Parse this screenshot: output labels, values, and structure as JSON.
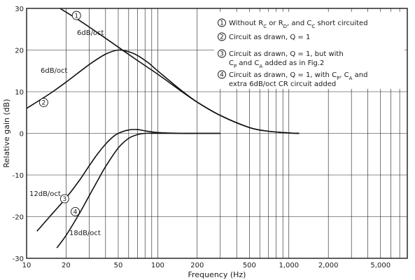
{
  "chart_data": {
    "type": "line",
    "xlabel": "Frequency (Hz)",
    "ylabel": "Relative gain (dB)",
    "xscale": "log",
    "xlim": [
      10,
      8000
    ],
    "ylim": [
      -30,
      30
    ],
    "x_ticks": [
      {
        "value": 10,
        "label": "10"
      },
      {
        "value": 20,
        "label": "20"
      },
      {
        "value": 50,
        "label": "50"
      },
      {
        "value": 100,
        "label": "100"
      },
      {
        "value": 200,
        "label": "200"
      },
      {
        "value": 500,
        "label": "500"
      },
      {
        "value": 1000,
        "label": "1,000"
      },
      {
        "value": 2000,
        "label": "2,000"
      },
      {
        "value": 5000,
        "label": "5,000"
      }
    ],
    "y_ticks": [
      {
        "value": 30,
        "label": "30"
      },
      {
        "value": 20,
        "label": "20"
      },
      {
        "value": 10,
        "label": "10"
      },
      {
        "value": 0,
        "label": "0"
      },
      {
        "value": -10,
        "label": "-10"
      },
      {
        "value": -20,
        "label": "-20"
      },
      {
        "value": -30,
        "label": "-30"
      }
    ],
    "grid": true,
    "legend_position": "top-right",
    "legend": [
      "Without R_C or R_D, and C_C short circuited",
      "Circuit as drawn, Q = 1",
      "Circuit as drawn, Q = 1, but with C_P and C_A added as in Fig.2",
      "Circuit as drawn, Q = 1, with C_P, C_A and extra 6dB/oct CR circuit added"
    ],
    "series": [
      {
        "id": "1",
        "x": [
          18,
          25,
          35,
          50,
          70,
          100,
          150,
          200,
          300,
          500,
          700,
          1000,
          1200
        ],
        "y": [
          30,
          27.2,
          24.1,
          20.7,
          17.5,
          14.2,
          10.2,
          7.5,
          4.3,
          1.4,
          0.5,
          0.1,
          0
        ]
      },
      {
        "id": "2",
        "x": [
          10,
          15,
          20,
          30,
          40,
          50,
          60,
          70,
          85,
          100,
          150,
          200,
          300,
          500,
          700,
          1000,
          1200
        ],
        "y": [
          6,
          9.5,
          12.3,
          16.5,
          19.0,
          20.0,
          19.6,
          18.7,
          16.9,
          15.0,
          10.4,
          7.5,
          4.3,
          1.4,
          0.5,
          0.1,
          0
        ]
      },
      {
        "id": "3",
        "x": [
          12,
          15,
          20,
          25,
          30,
          35,
          40,
          45,
          50,
          60,
          70,
          80,
          100,
          150,
          200,
          300
        ],
        "y": [
          -23.5,
          -20,
          -15.5,
          -11.5,
          -7.8,
          -4.8,
          -2.6,
          -1.0,
          0,
          0.8,
          0.9,
          0.6,
          0.2,
          0,
          0,
          0
        ]
      },
      {
        "id": "4",
        "x": [
          17,
          20,
          25,
          30,
          35,
          40,
          50,
          60,
          70,
          80,
          100,
          150,
          200,
          300
        ],
        "y": [
          -27.5,
          -24.5,
          -19.5,
          -15,
          -11.2,
          -8.0,
          -3.5,
          -1.2,
          -0.3,
          0,
          0,
          0,
          0,
          0
        ]
      }
    ],
    "annotations": {
      "slope_1": "6dB/oct",
      "slope_2": "6dB/oct",
      "slope_3": "12dB/oct",
      "slope_4": "18dB/oct"
    }
  },
  "legend_items": [
    {
      "num": "1",
      "parts": [
        {
          "t": "Without R"
        },
        {
          "t": "C",
          "sub": true
        },
        {
          "t": " or R"
        },
        {
          "t": "D",
          "sub": true
        },
        {
          "t": ", and C"
        },
        {
          "t": "C",
          "sub": true
        },
        {
          "t": " short circuited"
        }
      ]
    },
    {
      "num": "2",
      "parts": [
        {
          "t": "Circuit as drawn, Q = 1"
        }
      ]
    },
    {
      "num": "3",
      "parts": [
        {
          "t": "Circuit as drawn, Q = 1, but with"
        }
      ],
      "line2": [
        {
          "t": "C"
        },
        {
          "t": "P",
          "sub": true
        },
        {
          "t": " and C"
        },
        {
          "t": "A",
          "sub": true
        },
        {
          "t": " added as in Fig.2"
        }
      ]
    },
    {
      "num": "4",
      "parts": [
        {
          "t": "Circuit as drawn, Q = 1, with C"
        },
        {
          "t": "P",
          "sub": true
        },
        {
          "t": ", C"
        },
        {
          "t": "A",
          "sub": true
        },
        {
          "t": " and"
        }
      ],
      "line2": [
        {
          "t": "extra 6dB/oct CR circuit added"
        }
      ]
    }
  ]
}
